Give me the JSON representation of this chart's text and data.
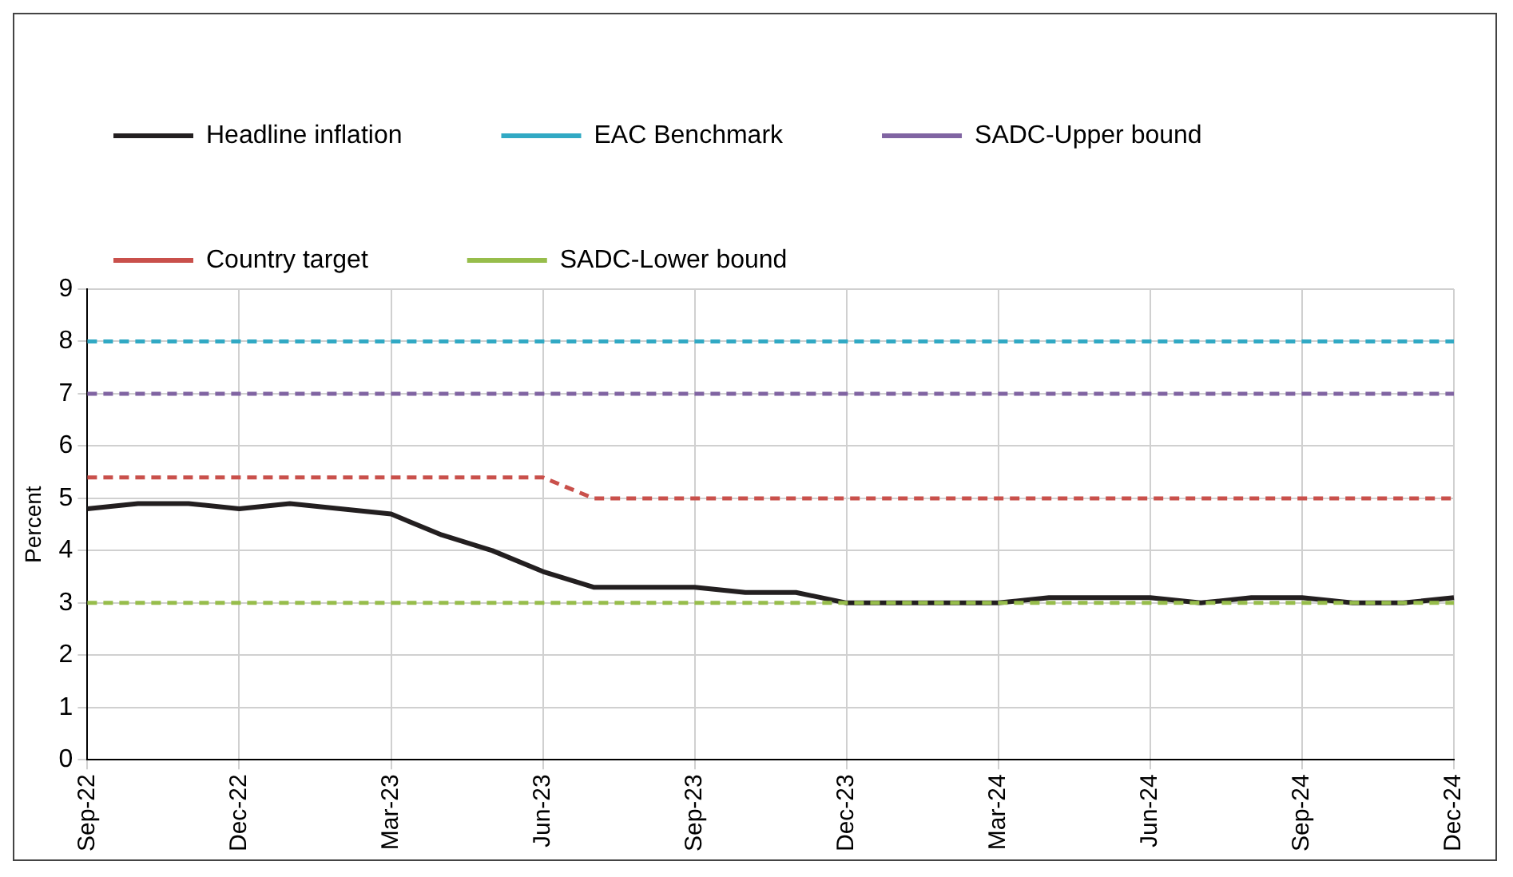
{
  "chart_data": {
    "type": "line",
    "ylabel": "Percent",
    "categories": [
      "Sep-22",
      null,
      null,
      "Dec-22",
      null,
      null,
      "Mar-23",
      null,
      null,
      "Jun-23",
      null,
      null,
      "Sep-23",
      null,
      null,
      "Dec-23",
      null,
      null,
      "Mar-24",
      null,
      null,
      "Jun-24",
      null,
      null,
      "Sep-24",
      null,
      null,
      "Dec-24"
    ],
    "series": [
      {
        "name": "Headline inflation",
        "color": "#231f20",
        "line_style": "solid",
        "values": [
          4.8,
          4.9,
          4.9,
          4.8,
          4.9,
          4.8,
          4.7,
          4.3,
          4.0,
          3.6,
          3.3,
          3.3,
          3.3,
          3.2,
          3.2,
          3.0,
          3.0,
          3.0,
          3.0,
          3.1,
          3.1,
          3.1,
          3.0,
          3.1,
          3.1,
          3.0,
          3.0,
          3.1
        ]
      },
      {
        "name": "EAC Benchmark",
        "color": "#31a9c4",
        "line_style": "dashed",
        "values": [
          8,
          8,
          8,
          8,
          8,
          8,
          8,
          8,
          8,
          8,
          8,
          8,
          8,
          8,
          8,
          8,
          8,
          8,
          8,
          8,
          8,
          8,
          8,
          8,
          8,
          8,
          8,
          8
        ]
      },
      {
        "name": "SADC-Upper bound",
        "color": "#8064a2",
        "line_style": "dashed",
        "values": [
          7,
          7,
          7,
          7,
          7,
          7,
          7,
          7,
          7,
          7,
          7,
          7,
          7,
          7,
          7,
          7,
          7,
          7,
          7,
          7,
          7,
          7,
          7,
          7,
          7,
          7,
          7,
          7
        ]
      },
      {
        "name": "Country target",
        "color": "#c9504b",
        "line_style": "dashed",
        "values": [
          5.4,
          5.4,
          5.4,
          5.4,
          5.4,
          5.4,
          5.4,
          5.4,
          5.4,
          5.4,
          5,
          5,
          5,
          5,
          5,
          5,
          5,
          5,
          5,
          5,
          5,
          5,
          5,
          5,
          5,
          5,
          5,
          5
        ]
      },
      {
        "name": "SADC-Lower bound",
        "color": "#97bd4b",
        "line_style": "dashed",
        "values": [
          3,
          3,
          3,
          3,
          3,
          3,
          3,
          3,
          3,
          3,
          3,
          3,
          3,
          3,
          3,
          3,
          3,
          3,
          3,
          3,
          3,
          3,
          3,
          3,
          3,
          3,
          3,
          3
        ]
      }
    ],
    "ylim": [
      0,
      9
    ],
    "yticks": [
      0,
      1,
      2,
      3,
      4,
      5,
      6,
      7,
      8,
      9
    ],
    "grid": true,
    "legend": "top",
    "marker": "none"
  }
}
